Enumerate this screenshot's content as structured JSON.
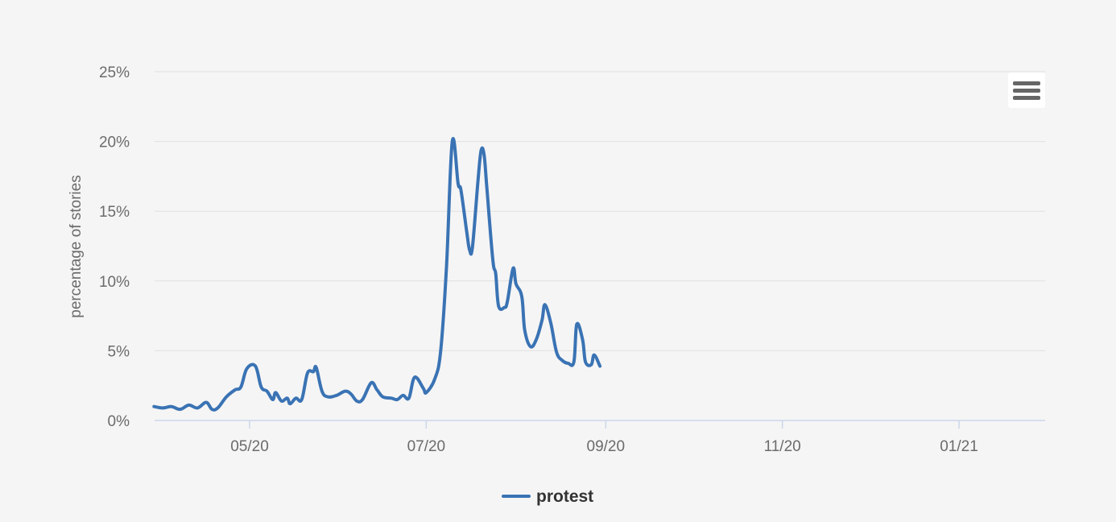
{
  "chart_data": {
    "type": "line",
    "title": "",
    "xlabel": "",
    "ylabel": "percentage of stories",
    "ylim": [
      0,
      25
    ],
    "y_ticks": [
      "0%",
      "5%",
      "10%",
      "15%",
      "20%",
      "25%"
    ],
    "y_tick_values": [
      0,
      5,
      10,
      15,
      20,
      25
    ],
    "x_ticks": [
      "05/20",
      "07/20",
      "09/20",
      "11/20",
      "01/21"
    ],
    "x_tick_dates": [
      "2020-05-01",
      "2020-07-01",
      "2020-09-01",
      "2020-11-01",
      "2021-01-01"
    ],
    "x_range": [
      "2020-03-29",
      "2021-02-26"
    ],
    "grid": true,
    "legend_position": "bottom-center",
    "series": [
      {
        "name": "protest",
        "color": "#3a73b4",
        "points": [
          [
            "2020-03-29",
            1.0
          ],
          [
            "2020-04-01",
            0.9
          ],
          [
            "2020-04-04",
            1.0
          ],
          [
            "2020-04-07",
            0.8
          ],
          [
            "2020-04-10",
            1.1
          ],
          [
            "2020-04-13",
            0.9
          ],
          [
            "2020-04-16",
            1.3
          ],
          [
            "2020-04-18",
            0.8
          ],
          [
            "2020-04-20",
            0.9
          ],
          [
            "2020-04-23",
            1.7
          ],
          [
            "2020-04-26",
            2.2
          ],
          [
            "2020-04-28",
            2.4
          ],
          [
            "2020-04-30",
            3.7
          ],
          [
            "2020-05-03",
            3.9
          ],
          [
            "2020-05-05",
            2.4
          ],
          [
            "2020-05-07",
            2.1
          ],
          [
            "2020-05-09",
            1.5
          ],
          [
            "2020-05-10",
            2.0
          ],
          [
            "2020-05-12",
            1.4
          ],
          [
            "2020-05-14",
            1.6
          ],
          [
            "2020-05-15",
            1.2
          ],
          [
            "2020-05-17",
            1.6
          ],
          [
            "2020-05-19",
            1.5
          ],
          [
            "2020-05-21",
            3.4
          ],
          [
            "2020-05-23",
            3.5
          ],
          [
            "2020-05-24",
            3.8
          ],
          [
            "2020-05-26",
            2.1
          ],
          [
            "2020-05-28",
            1.7
          ],
          [
            "2020-05-31",
            1.8
          ],
          [
            "2020-06-03",
            2.1
          ],
          [
            "2020-06-05",
            1.9
          ],
          [
            "2020-06-07",
            1.4
          ],
          [
            "2020-06-09",
            1.5
          ],
          [
            "2020-06-12",
            2.7
          ],
          [
            "2020-06-14",
            2.2
          ],
          [
            "2020-06-16",
            1.7
          ],
          [
            "2020-06-19",
            1.6
          ],
          [
            "2020-06-21",
            1.5
          ],
          [
            "2020-06-23",
            1.8
          ],
          [
            "2020-06-25",
            1.6
          ],
          [
            "2020-06-27",
            3.1
          ],
          [
            "2020-06-30",
            2.3
          ],
          [
            "2020-07-01",
            2.0
          ],
          [
            "2020-07-04",
            3.0
          ],
          [
            "2020-07-06",
            5.0
          ],
          [
            "2020-07-08",
            11.0
          ],
          [
            "2020-07-10",
            20.0
          ],
          [
            "2020-07-12",
            17.0
          ],
          [
            "2020-07-13",
            16.5
          ],
          [
            "2020-07-15",
            13.5
          ],
          [
            "2020-07-16",
            12.2
          ],
          [
            "2020-07-17",
            12.5
          ],
          [
            "2020-07-19",
            17.5
          ],
          [
            "2020-07-20",
            19.4
          ],
          [
            "2020-07-21",
            19.0
          ],
          [
            "2020-07-22",
            16.5
          ],
          [
            "2020-07-24",
            11.5
          ],
          [
            "2020-07-25",
            10.5
          ],
          [
            "2020-07-26",
            8.2
          ],
          [
            "2020-07-28",
            8.1
          ],
          [
            "2020-07-29",
            8.5
          ],
          [
            "2020-07-31",
            10.9
          ],
          [
            "2020-08-01",
            9.8
          ],
          [
            "2020-08-03",
            8.9
          ],
          [
            "2020-08-04",
            6.5
          ],
          [
            "2020-08-06",
            5.3
          ],
          [
            "2020-08-08",
            5.8
          ],
          [
            "2020-08-10",
            7.2
          ],
          [
            "2020-08-11",
            8.3
          ],
          [
            "2020-08-13",
            7.0
          ],
          [
            "2020-08-15",
            4.9
          ],
          [
            "2020-08-17",
            4.3
          ],
          [
            "2020-08-19",
            4.1
          ],
          [
            "2020-08-21",
            4.2
          ],
          [
            "2020-08-22",
            6.9
          ],
          [
            "2020-08-24",
            5.8
          ],
          [
            "2020-08-25",
            4.2
          ],
          [
            "2020-08-27",
            4.0
          ],
          [
            "2020-08-28",
            4.7
          ],
          [
            "2020-08-30",
            3.9
          ]
        ]
      }
    ]
  },
  "menu": {
    "icon": "hamburger-icon"
  }
}
